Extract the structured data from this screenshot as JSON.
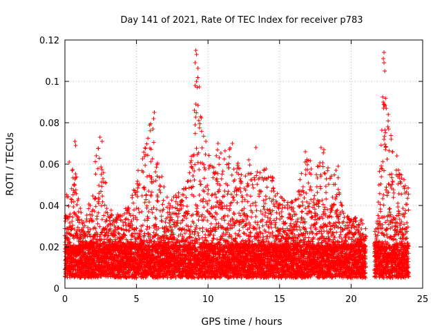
{
  "chart_data": {
    "type": "scatter",
    "title": "Day 141 of 2021, Rate Of TEC Index for receiver p783",
    "xlabel": "GPS time / hours",
    "ylabel": "ROTI / TECUs",
    "xlim": [
      0,
      25
    ],
    "ylim": [
      0,
      0.12
    ],
    "grid": true,
    "marker": "+",
    "color": "#ff0000",
    "x_ticks": [
      {
        "value": 0,
        "label": "0"
      },
      {
        "value": 5,
        "label": "5"
      },
      {
        "value": 10,
        "label": "10"
      },
      {
        "value": 15,
        "label": "15"
      },
      {
        "value": 20,
        "label": "20"
      },
      {
        "value": 25,
        "label": "25"
      }
    ],
    "y_ticks": [
      {
        "value": 0,
        "label": "0"
      },
      {
        "value": 0.02,
        "label": "0.02"
      },
      {
        "value": 0.04,
        "label": "0.04"
      },
      {
        "value": 0.06,
        "label": "0.06"
      },
      {
        "value": 0.08,
        "label": "0.08"
      },
      {
        "value": 0.1,
        "label": "0.1"
      },
      {
        "value": 0.12,
        "label": "0.12"
      }
    ],
    "series": [
      {
        "name": "ROTI",
        "data_gap": [
          21.0,
          21.6
        ],
        "envelope": {
          "x": [
            0.0,
            0.2,
            0.4,
            0.6,
            0.8,
            1.0,
            1.5,
            2.0,
            2.3,
            2.5,
            2.8,
            3.0,
            3.5,
            4.0,
            4.5,
            5.0,
            5.5,
            5.8,
            6.0,
            6.2,
            6.5,
            7.0,
            7.5,
            8.0,
            8.5,
            9.0,
            9.2,
            9.5,
            9.8,
            10.0,
            10.5,
            11.0,
            11.5,
            12.0,
            12.5,
            13.0,
            13.5,
            14.0,
            14.5,
            15.0,
            15.5,
            16.0,
            16.5,
            17.0,
            17.5,
            18.0,
            18.5,
            19.0,
            19.5,
            20.0,
            20.5,
            21.0,
            21.6,
            22.0,
            22.3,
            22.5,
            23.0,
            23.5,
            24.0
          ],
          "ymax": [
            0.031,
            0.06,
            0.05,
            0.071,
            0.055,
            0.04,
            0.037,
            0.06,
            0.073,
            0.066,
            0.055,
            0.04,
            0.035,
            0.037,
            0.043,
            0.055,
            0.07,
            0.075,
            0.085,
            0.078,
            0.065,
            0.048,
            0.044,
            0.048,
            0.05,
            0.08,
            0.115,
            0.085,
            0.07,
            0.066,
            0.07,
            0.066,
            0.069,
            0.062,
            0.058,
            0.068,
            0.055,
            0.059,
            0.055,
            0.045,
            0.042,
            0.042,
            0.055,
            0.066,
            0.06,
            0.068,
            0.055,
            0.059,
            0.038,
            0.034,
            0.035,
            0.029,
            0.025,
            0.06,
            0.114,
            0.09,
            0.064,
            0.055,
            0.05
          ]
        },
        "sample_points": [
          {
            "x": 9.15,
            "y": 0.115
          },
          {
            "x": 9.2,
            "y": 0.113
          },
          {
            "x": 9.1,
            "y": 0.109
          },
          {
            "x": 9.2,
            "y": 0.1
          },
          {
            "x": 9.1,
            "y": 0.098
          },
          {
            "x": 9.15,
            "y": 0.089
          },
          {
            "x": 9.05,
            "y": 0.086
          },
          {
            "x": 9.1,
            "y": 0.079
          },
          {
            "x": 22.3,
            "y": 0.114
          },
          {
            "x": 22.25,
            "y": 0.111
          },
          {
            "x": 22.3,
            "y": 0.109
          },
          {
            "x": 22.35,
            "y": 0.105
          },
          {
            "x": 22.25,
            "y": 0.09
          },
          {
            "x": 22.3,
            "y": 0.089
          },
          {
            "x": 22.35,
            "y": 0.088
          },
          {
            "x": 22.3,
            "y": 0.072
          },
          {
            "x": 22.4,
            "y": 0.067
          },
          {
            "x": 6.25,
            "y": 0.085
          },
          {
            "x": 6.2,
            "y": 0.082
          },
          {
            "x": 6.15,
            "y": 0.077
          },
          {
            "x": 2.45,
            "y": 0.073
          },
          {
            "x": 2.6,
            "y": 0.071
          },
          {
            "x": 0.7,
            "y": 0.071
          },
          {
            "x": 0.75,
            "y": 0.069
          },
          {
            "x": 9.85,
            "y": 0.071
          },
          {
            "x": 10.7,
            "y": 0.07
          },
          {
            "x": 11.7,
            "y": 0.07
          },
          {
            "x": 13.35,
            "y": 0.068
          },
          {
            "x": 16.8,
            "y": 0.066
          },
          {
            "x": 17.9,
            "y": 0.068
          },
          {
            "x": 18.1,
            "y": 0.067
          },
          {
            "x": 0.3,
            "y": 0.061
          },
          {
            "x": 19.1,
            "y": 0.059
          },
          {
            "x": 22.1,
            "y": 0.058
          },
          {
            "x": 23.2,
            "y": 0.064
          },
          {
            "x": 20.75,
            "y": 0.033
          },
          {
            "x": 21.05,
            "y": 0.025
          }
        ],
        "baseline_band": [
          0.005,
          0.02
        ]
      }
    ]
  }
}
